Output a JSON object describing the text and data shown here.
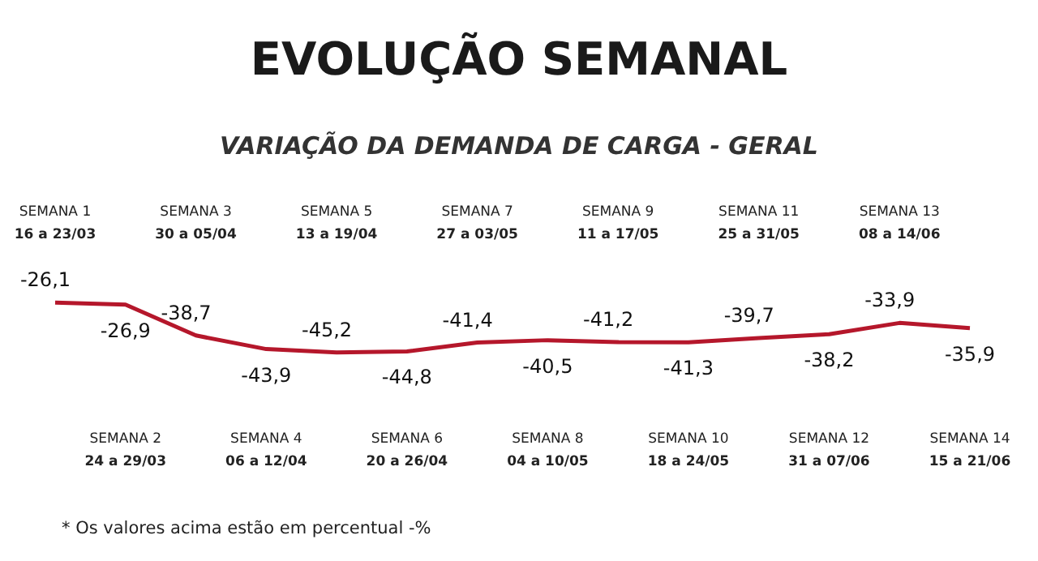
{
  "chart_data": {
    "type": "line",
    "title": "EVOLUÇÃO SEMANAL",
    "subtitle": "VARIAÇÃO DA DEMANDA DE CARGA - GERAL",
    "categories": [
      "SEMANA 1\n16 a 23/03",
      "SEMANA 2\n24 a 29/03",
      "SEMANA 3\n30 a 05/04",
      "SEMANA 4\n06 a 12/04",
      "SEMANA 5\n13 a 19/04",
      "SEMANA 6\n20 a 26/04",
      "SEMANA 7\n27 a 03/05",
      "SEMANA 8\n04 a 10/05",
      "SEMANA 9\n11 a 17/05",
      "SEMANA 10\n18 a 24/05",
      "SEMANA 11\n25 a 31/05",
      "SEMANA 12\n31 a 07/06",
      "SEMANA 13\n08 a 14/06",
      "SEMANA 14\n15 a 21/06"
    ],
    "series": [
      {
        "color": "#b5172b",
        "values": [
          -26.1,
          -26.9,
          -38.7,
          -43.9,
          -45.2,
          -44.8,
          -41.4,
          -40.5,
          -41.2,
          -41.3,
          -39.7,
          -38.2,
          -33.9,
          -35.9
        ],
        "value_labels": [
          "-26,1",
          "-26,9",
          "-38,7",
          "-43,9",
          "-45,2",
          "-44,8",
          "-41,4",
          "-40,5",
          "-41,2",
          "-41,3",
          "-39,7",
          "-38,2",
          "-33,9",
          "-35,9"
        ]
      }
    ],
    "annotations": [
      "* Os valores acima estão em percentual -%"
    ],
    "marker": "none",
    "line_style": "solid"
  }
}
